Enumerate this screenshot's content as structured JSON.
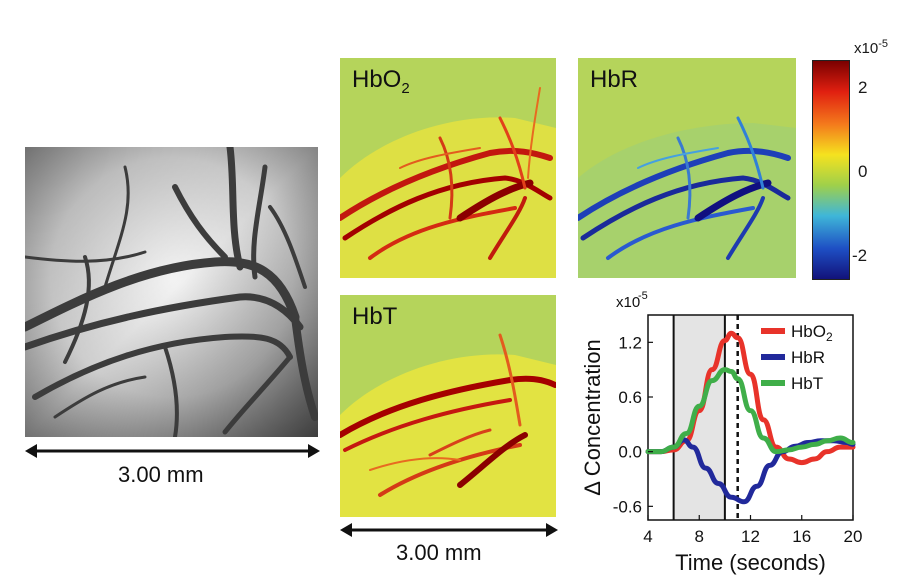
{
  "panels": {
    "raw": {
      "scale_label": "3.00 mm"
    },
    "hbo2": {
      "label_main": "HbO",
      "label_sub": "2"
    },
    "hbr": {
      "label": "HbR"
    },
    "hbt": {
      "label": "HbT",
      "scale_label": "3.00 mm"
    }
  },
  "colorbar": {
    "exponent_label": "x10",
    "exponent_sup": "-5",
    "ticks": [
      "2",
      "0",
      "-2"
    ],
    "colors": [
      "#7a0000",
      "#e01f10",
      "#f47a1c",
      "#f5e21f",
      "#9fd04a",
      "#3fb6d8",
      "#1e4fc4",
      "#12127a"
    ]
  },
  "chart_data": {
    "type": "line",
    "ylabel": "Δ Concentration",
    "xlabel": "Time (seconds)",
    "y_multiplier": "x10",
    "y_multiplier_sup": "-5",
    "xlim": [
      4,
      20
    ],
    "ylim": [
      -0.75,
      1.5
    ],
    "xticks": [
      4,
      8,
      12,
      16,
      20
    ],
    "xtick_labels": [
      "4",
      "8",
      "12",
      "16",
      "20"
    ],
    "yticks": [
      -0.6,
      0.0,
      0.6,
      1.2
    ],
    "ytick_labels": [
      "-0.6",
      "0.0",
      "0.6",
      "1.2"
    ],
    "stim_window": [
      6,
      10
    ],
    "vlines": [
      6,
      10
    ],
    "dashed_vline": 11,
    "legend_position": "top-right",
    "legend": [
      {
        "main": "HbO",
        "sub": "2",
        "color": "#e8332a"
      },
      {
        "main": "HbR",
        "sub": "",
        "color": "#21299b"
      },
      {
        "main": "HbT",
        "sub": "",
        "color": "#3fae49"
      }
    ],
    "series": [
      {
        "color": "#e8332a",
        "x": [
          4,
          5,
          6,
          7,
          8,
          9,
          10,
          10.5,
          11,
          12,
          13,
          14,
          15,
          16,
          17,
          18,
          19,
          20
        ],
        "y": [
          0.0,
          0.0,
          0.02,
          0.12,
          0.45,
          0.9,
          1.22,
          1.3,
          1.25,
          0.85,
          0.35,
          0.05,
          -0.08,
          -0.12,
          -0.08,
          0.0,
          0.05,
          0.05
        ]
      },
      {
        "color": "#21299b",
        "x": [
          4,
          5,
          6,
          6.8,
          7.5,
          8.5,
          9.5,
          10.5,
          11.5,
          12.5,
          13.5,
          14.5,
          15.5,
          16.5,
          17.5,
          18.5,
          19.5,
          20
        ],
        "y": [
          0.0,
          0.0,
          0.05,
          0.13,
          0.05,
          -0.18,
          -0.35,
          -0.5,
          -0.55,
          -0.38,
          -0.15,
          0.0,
          0.06,
          0.1,
          0.12,
          0.12,
          0.1,
          0.08
        ]
      },
      {
        "color": "#3fae49",
        "x": [
          4,
          5,
          6,
          7,
          8,
          9,
          10,
          10.5,
          11,
          12,
          13,
          14,
          15,
          16,
          17,
          18,
          19,
          20
        ],
        "y": [
          0.0,
          0.0,
          0.05,
          0.2,
          0.5,
          0.78,
          0.9,
          0.88,
          0.8,
          0.45,
          0.15,
          0.0,
          0.02,
          0.05,
          0.08,
          0.12,
          0.15,
          0.1
        ]
      }
    ]
  }
}
